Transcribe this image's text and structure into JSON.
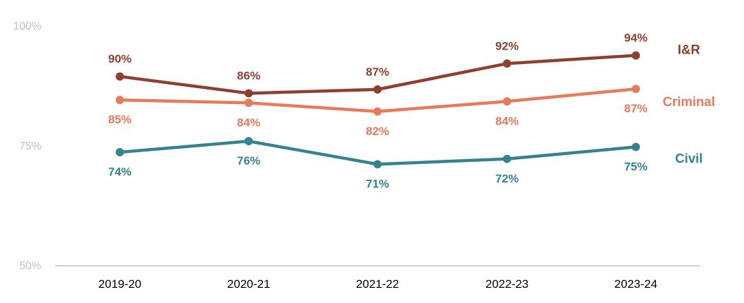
{
  "chart_data": {
    "type": "line",
    "categories": [
      "2019-20",
      "2020-21",
      "2021-22",
      "2022-23",
      "2023-24"
    ],
    "ylim": [
      50,
      100
    ],
    "yticks": [
      "100%",
      "75%",
      "50%"
    ],
    "series": [
      {
        "name": "I&R",
        "color": "#8e3f32",
        "values": [
          89.5,
          86.0,
          86.8,
          92.2,
          93.9
        ],
        "labels": [
          "90%",
          "86%",
          "87%",
          "92%",
          "94%"
        ],
        "label_position": "above"
      },
      {
        "name": "Criminal",
        "color": "#e8795a",
        "values": [
          84.6,
          84.0,
          82.2,
          84.3,
          86.9
        ],
        "labels": [
          "85%",
          "84%",
          "82%",
          "84%",
          "87%"
        ],
        "label_position": "below"
      },
      {
        "name": "Civil",
        "color": "#35838f",
        "values": [
          73.7,
          76.0,
          71.2,
          72.3,
          74.8
        ],
        "labels": [
          "74%",
          "76%",
          "71%",
          "72%",
          "75%"
        ],
        "label_position": "below"
      }
    ]
  }
}
